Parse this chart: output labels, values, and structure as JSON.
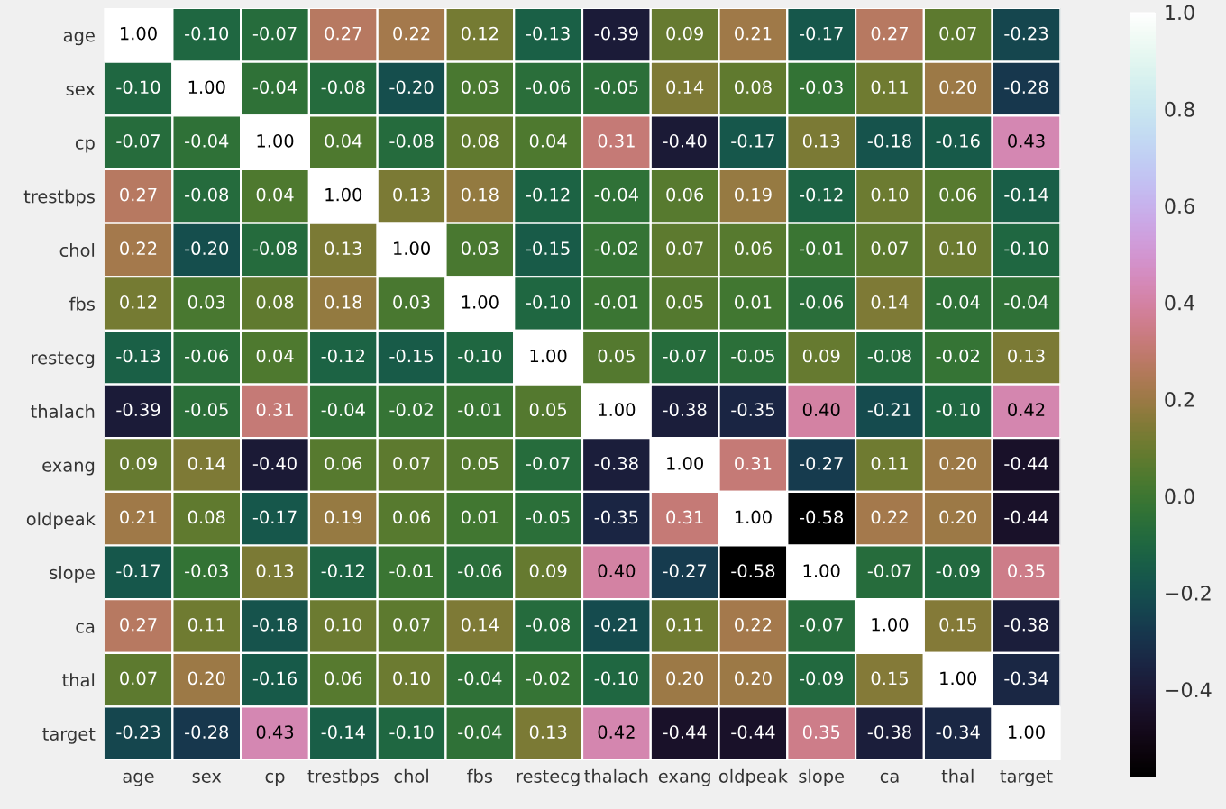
{
  "chart_data": {
    "type": "heatmap",
    "categories": [
      "age",
      "sex",
      "cp",
      "trestbps",
      "chol",
      "fbs",
      "restecg",
      "thalach",
      "exang",
      "oldpeak",
      "slope",
      "ca",
      "thal",
      "target"
    ],
    "y_categories": [
      "age",
      "sex",
      "cp",
      "trestbps",
      "chol",
      "fbs",
      "restecg",
      "thalach",
      "exang",
      "oldpeak",
      "slope",
      "ca",
      "thal",
      "target"
    ],
    "cells": [
      [
        1.0,
        -0.1,
        -0.07,
        0.27,
        0.22,
        0.12,
        -0.13,
        -0.39,
        0.09,
        0.21,
        -0.17,
        0.27,
        0.07,
        -0.23
      ],
      [
        -0.1,
        1.0,
        -0.04,
        -0.08,
        -0.2,
        0.03,
        -0.06,
        -0.05,
        0.14,
        0.08,
        -0.03,
        0.11,
        0.2,
        -0.28
      ],
      [
        -0.07,
        -0.04,
        1.0,
        0.04,
        -0.08,
        0.08,
        0.04,
        0.31,
        -0.4,
        -0.17,
        0.13,
        -0.18,
        -0.16,
        0.43
      ],
      [
        0.27,
        -0.08,
        0.04,
        1.0,
        0.13,
        0.18,
        -0.12,
        -0.04,
        0.06,
        0.19,
        -0.12,
        0.1,
        0.06,
        -0.14
      ],
      [
        0.22,
        -0.2,
        -0.08,
        0.13,
        1.0,
        0.03,
        -0.15,
        -0.02,
        0.07,
        0.06,
        -0.01,
        0.07,
        0.1,
        -0.1
      ],
      [
        0.12,
        0.03,
        0.08,
        0.18,
        0.03,
        1.0,
        -0.1,
        -0.01,
        0.05,
        0.01,
        -0.06,
        0.14,
        -0.04,
        -0.04
      ],
      [
        -0.13,
        -0.06,
        0.04,
        -0.12,
        -0.15,
        -0.1,
        1.0,
        0.05,
        -0.07,
        -0.05,
        0.09,
        -0.08,
        -0.02,
        0.13
      ],
      [
        -0.39,
        -0.05,
        0.31,
        -0.04,
        -0.02,
        -0.01,
        0.05,
        1.0,
        -0.38,
        -0.35,
        0.4,
        -0.21,
        -0.1,
        0.42
      ],
      [
        0.09,
        0.14,
        -0.4,
        0.06,
        0.07,
        0.05,
        -0.07,
        -0.38,
        1.0,
        0.31,
        -0.27,
        0.11,
        0.2,
        -0.44
      ],
      [
        0.21,
        0.08,
        -0.17,
        0.19,
        0.06,
        0.01,
        -0.05,
        -0.35,
        0.31,
        1.0,
        -0.58,
        0.22,
        0.2,
        -0.44
      ],
      [
        -0.17,
        -0.03,
        0.13,
        -0.12,
        -0.01,
        -0.06,
        0.09,
        0.4,
        -0.27,
        -0.58,
        1.0,
        -0.07,
        -0.09,
        0.35
      ],
      [
        0.27,
        0.11,
        -0.18,
        0.1,
        0.07,
        0.14,
        -0.08,
        -0.21,
        0.11,
        0.22,
        -0.07,
        1.0,
        0.15,
        -0.38
      ],
      [
        0.07,
        0.2,
        -0.16,
        0.06,
        0.1,
        -0.04,
        -0.02,
        -0.1,
        0.2,
        0.2,
        -0.09,
        0.15,
        1.0,
        -0.34
      ],
      [
        -0.23,
        -0.28,
        0.43,
        -0.14,
        -0.1,
        -0.04,
        0.13,
        0.42,
        -0.44,
        -0.44,
        0.35,
        -0.38,
        -0.34,
        1.0
      ]
    ],
    "cell_labels": [
      [
        "1.00",
        "-0.10",
        "-0.07",
        "0.27",
        "0.22",
        "0.12",
        "-0.13",
        "-0.39",
        "0.09",
        "0.21",
        "-0.17",
        "0.27",
        "0.07",
        "-0.23"
      ],
      [
        "-0.10",
        "1.00",
        "-0.04",
        "-0.08",
        "-0.20",
        "0.03",
        "-0.06",
        "-0.05",
        "0.14",
        "0.08",
        "-0.03",
        "0.11",
        "0.20",
        "-0.28"
      ],
      [
        "-0.07",
        "-0.04",
        "1.00",
        "0.04",
        "-0.08",
        "0.08",
        "0.04",
        "0.31",
        "-0.40",
        "-0.17",
        "0.13",
        "-0.18",
        "-0.16",
        "0.43"
      ],
      [
        "0.27",
        "-0.08",
        "0.04",
        "1.00",
        "0.13",
        "0.18",
        "-0.12",
        "-0.04",
        "0.06",
        "0.19",
        "-0.12",
        "0.10",
        "0.06",
        "-0.14"
      ],
      [
        "0.22",
        "-0.20",
        "-0.08",
        "0.13",
        "1.00",
        "0.03",
        "-0.15",
        "-0.02",
        "0.07",
        "0.06",
        "-0.01",
        "0.07",
        "0.10",
        "-0.10"
      ],
      [
        "0.12",
        "0.03",
        "0.08",
        "0.18",
        "0.03",
        "1.00",
        "-0.10",
        "-0.01",
        "0.05",
        "0.01",
        "-0.06",
        "0.14",
        "-0.04",
        "-0.04"
      ],
      [
        "-0.13",
        "-0.06",
        "0.04",
        "-0.12",
        "-0.15",
        "-0.10",
        "1.00",
        "0.05",
        "-0.07",
        "-0.05",
        "0.09",
        "-0.08",
        "-0.02",
        "0.13"
      ],
      [
        "-0.39",
        "-0.05",
        "0.31",
        "-0.04",
        "-0.02",
        "-0.01",
        "0.05",
        "1.00",
        "-0.38",
        "-0.35",
        "0.40",
        "-0.21",
        "-0.10",
        "0.42"
      ],
      [
        "0.09",
        "0.14",
        "-0.40",
        "0.06",
        "0.07",
        "0.05",
        "-0.07",
        "-0.38",
        "1.00",
        "0.31",
        "-0.27",
        "0.11",
        "0.20",
        "-0.44"
      ],
      [
        "0.21",
        "0.08",
        "-0.17",
        "0.19",
        "0.06",
        "0.01",
        "-0.05",
        "-0.35",
        "0.31",
        "1.00",
        "-0.58",
        "0.22",
        "0.20",
        "-0.44"
      ],
      [
        "-0.17",
        "-0.03",
        "0.13",
        "-0.12",
        "-0.01",
        "-0.06",
        "0.09",
        "0.40",
        "-0.27",
        "-0.58",
        "1.00",
        "-0.07",
        "-0.09",
        "0.35"
      ],
      [
        "0.27",
        "0.11",
        "-0.18",
        "0.10",
        "0.07",
        "0.14",
        "-0.08",
        "-0.21",
        "0.11",
        "0.22",
        "-0.07",
        "1.00",
        "0.15",
        "-0.38"
      ],
      [
        "0.07",
        "0.20",
        "-0.16",
        "0.06",
        "0.10",
        "-0.04",
        "-0.02",
        "-0.10",
        "0.20",
        "0.20",
        "-0.09",
        "0.15",
        "1.00",
        "-0.34"
      ],
      [
        "-0.23",
        "-0.28",
        "0.43",
        "-0.14",
        "-0.10",
        "-0.04",
        "0.13",
        "0.42",
        "-0.44",
        "-0.44",
        "0.35",
        "-0.38",
        "-0.34",
        "1.00"
      ]
    ],
    "data_labels": true,
    "clim": [
      -0.58,
      1.0
    ],
    "cticks": [
      {
        "value": -0.4,
        "label": "−0.4"
      },
      {
        "value": -0.2,
        "label": "−0.2"
      },
      {
        "value": 0,
        "label": "0.0"
      },
      {
        "value": 0.2,
        "label": "0.2"
      },
      {
        "value": 0.4,
        "label": "0.4"
      },
      {
        "value": 0.6,
        "label": "0.6"
      },
      {
        "value": 0.8,
        "label": "0.8"
      },
      {
        "value": 1.0,
        "label": "1.0"
      }
    ]
  }
}
